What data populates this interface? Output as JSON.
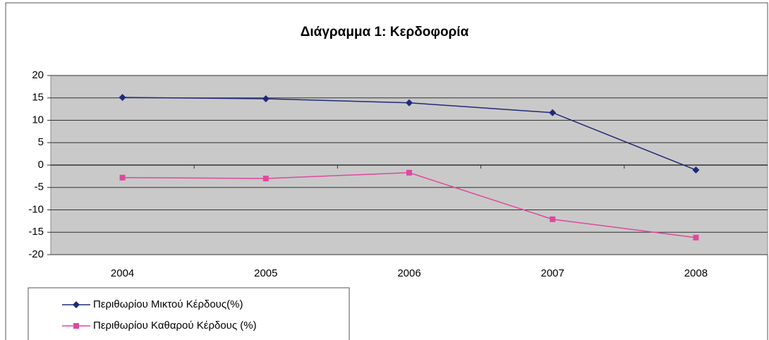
{
  "chart_data": {
    "type": "line",
    "title": "Διάγραμμα 1: Κερδοφορία",
    "categories": [
      "2004",
      "2005",
      "2006",
      "2007",
      "2008"
    ],
    "series": [
      {
        "name": "Περιθωρίου Μικτού Κέρδους(%)",
        "color": "#1f2a7a",
        "marker": "diamond",
        "values": [
          15.1,
          14.8,
          13.9,
          11.7,
          -1.1
        ]
      },
      {
        "name": "Περιθωρίου Καθαρού Κέρδους (%)",
        "color": "#e0479e",
        "marker": "square",
        "values": [
          -2.8,
          -3.0,
          -1.7,
          -12.1,
          -16.2
        ]
      }
    ],
    "ylim": [
      -20,
      20
    ],
    "yticks": [
      -20,
      -15,
      -10,
      -5,
      0,
      5,
      10,
      15,
      20
    ],
    "grid": true,
    "legend": "bottom-left"
  }
}
